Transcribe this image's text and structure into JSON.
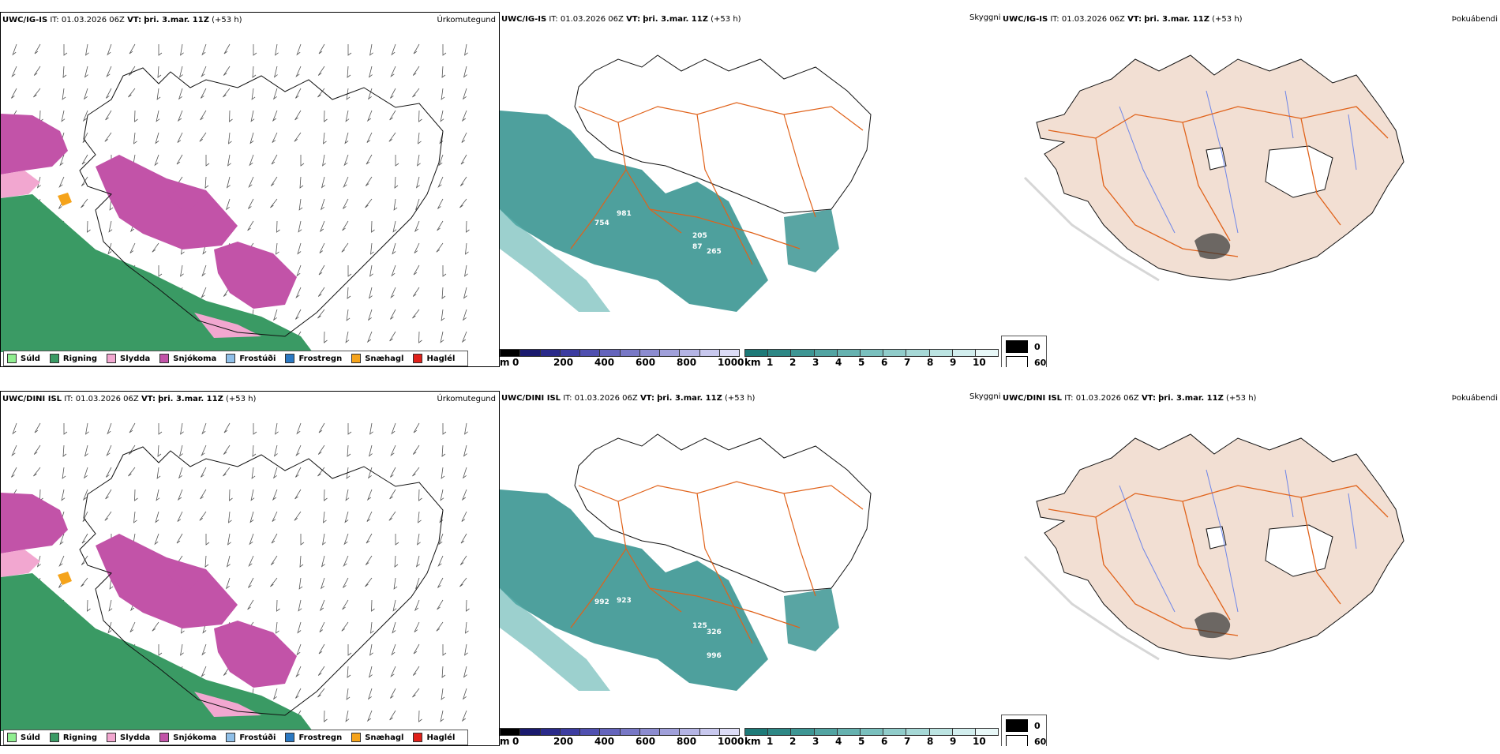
{
  "rows": [
    {
      "model": "UWC/IG-IS",
      "it_label": "IT:",
      "it_value": "01.03.2026 06Z",
      "vt_label": "VT:",
      "vt_value": "þri. 3.mar. 11Z",
      "lead": "(+53 h)",
      "spot_labels": [
        "754",
        "981",
        "205",
        "87",
        "265"
      ]
    },
    {
      "model": "UWC/DINI ISL",
      "it_label": "IT:",
      "it_value": "01.03.2026 06Z",
      "vt_label": "VT:",
      "vt_value": "þri. 3.mar. 11Z",
      "lead": "(+53 h)",
      "spot_labels": [
        "992",
        "923",
        "125",
        "326",
        "996"
      ]
    }
  ],
  "panel_titles": {
    "precip_type": "Úrkomutegund",
    "visibility": "Skyggni",
    "fog": "Þokuábendi"
  },
  "precip_legend": [
    {
      "label": "Súld",
      "color": "#90ee90"
    },
    {
      "label": "Rigning",
      "color": "#3a9a64"
    },
    {
      "label": "Slydda",
      "color": "#f2a7d0"
    },
    {
      "label": "Snjókoma",
      "color": "#c253a8"
    },
    {
      "label": "Frostúði",
      "color": "#8fbfe8"
    },
    {
      "label": "Frostregn",
      "color": "#2a78c2"
    },
    {
      "label": "Snæhagl",
      "color": "#f5a31a"
    },
    {
      "label": "Haglél",
      "color": "#e0201a"
    }
  ],
  "elevation_bar": {
    "unit": "m",
    "ticks": [
      "0",
      "200",
      "400",
      "600",
      "800",
      "1000"
    ],
    "colors": [
      "#000000",
      "#1a1a6e",
      "#2a2a8a",
      "#3c3ca0",
      "#5050b0",
      "#6464bc",
      "#7878c6",
      "#8c8cd0",
      "#a0a0da",
      "#b4b4e4",
      "#c8c8ee",
      "#dcdcf6"
    ]
  },
  "visibility_bar": {
    "unit": "km",
    "ticks": [
      "1",
      "2",
      "3",
      "4",
      "5",
      "6",
      "7",
      "8",
      "9",
      "10"
    ],
    "colors": [
      "#1e7a78",
      "#2e8886",
      "#3e9694",
      "#52a4a2",
      "#66b2b0",
      "#7ac0be",
      "#90ccca",
      "#a6d8d6",
      "#bce4e2",
      "#d2eeee",
      "#e8f8f8"
    ]
  },
  "fog_legend": [
    {
      "label": "0",
      "color": "#000000"
    },
    {
      "label": "60",
      "color": "#ffffff"
    }
  ],
  "colors": {
    "land_fog": "#f2dfd3",
    "road": "#e0621a",
    "river": "#6f86e8",
    "coast": "#111111",
    "vis_teal": "#2f8f8c"
  }
}
